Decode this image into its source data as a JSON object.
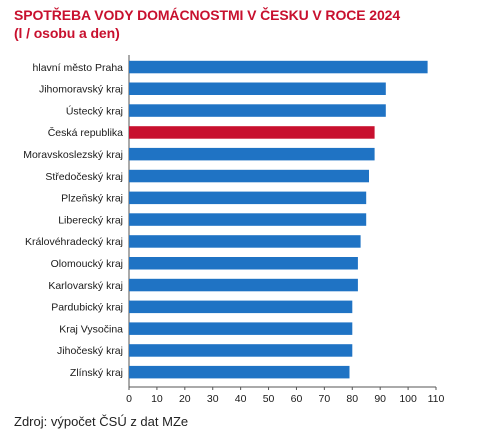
{
  "title": "SPOTŘEBA VODY DOMÁCNOSTMI V ČESKU V ROCE 2024",
  "subtitle": "(l / osobu a den)",
  "source": "Zdroj: výpočet ČSÚ z dat MZe",
  "chart_data": {
    "type": "bar",
    "orientation": "horizontal",
    "title": "SPOTŘEBA VODY DOMÁCNOSTMI V ČESKU V ROCE 2024",
    "subtitle": "(l / osobu a den)",
    "categories": [
      "hlavní město Praha",
      "Jihomoravský kraj",
      "Ústecký kraj",
      "Česká republika",
      "Moravskoslezský kraj",
      "Středočeský kraj",
      "Plzeňský kraj",
      "Liberecký kraj",
      "Královéhradecký kraj",
      "Olomoucký kraj",
      "Karlovarský kraj",
      "Pardubický kraj",
      "Kraj Vysočina",
      "Jihočeský kraj",
      "Zlínský kraj"
    ],
    "values": [
      107,
      92,
      92,
      88,
      88,
      86,
      85,
      85,
      83,
      82,
      82,
      80,
      80,
      80,
      79
    ],
    "highlight_category": "Česká republika",
    "colors": {
      "bar": "#1f73c4",
      "highlight": "#c8102e",
      "title": "#c8102e"
    },
    "xlim": [
      0,
      110
    ],
    "xticks": [
      0,
      10,
      20,
      30,
      40,
      50,
      60,
      70,
      80,
      90,
      100,
      110
    ],
    "grid": false,
    "legend": "none"
  }
}
